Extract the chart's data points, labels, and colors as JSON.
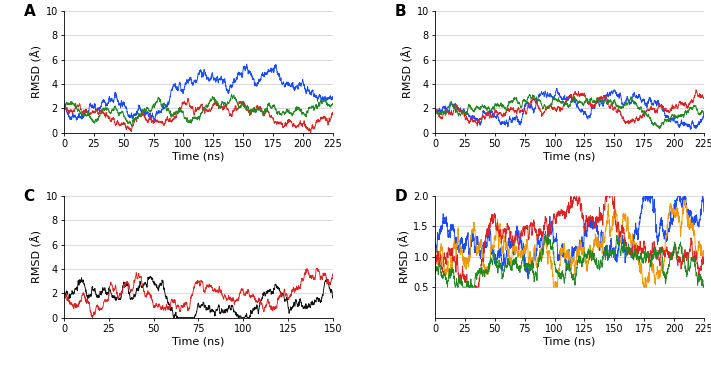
{
  "panel_A": {
    "label": "A",
    "xlim": [
      0,
      225
    ],
    "ylim": [
      0,
      10
    ],
    "xticks": [
      0,
      25,
      50,
      75,
      100,
      125,
      150,
      175,
      200,
      225
    ],
    "yticks": [
      0,
      2,
      4,
      6,
      8,
      10
    ],
    "xlabel": "Time (ns)",
    "ylabel": "RMSD (Å)"
  },
  "panel_B": {
    "label": "B",
    "xlim": [
      0,
      225
    ],
    "ylim": [
      0,
      10
    ],
    "xticks": [
      0,
      25,
      50,
      75,
      100,
      125,
      150,
      175,
      200,
      225
    ],
    "yticks": [
      0,
      2,
      4,
      6,
      8,
      10
    ],
    "xlabel": "Time (ns)",
    "ylabel": "RMSD (Å)"
  },
  "panel_C": {
    "label": "C",
    "xlim": [
      0,
      150
    ],
    "ylim": [
      0,
      10
    ],
    "xticks": [
      0,
      25,
      50,
      75,
      100,
      125,
      150
    ],
    "yticks": [
      0,
      2,
      4,
      6,
      8,
      10
    ],
    "xlabel": "Time (ns)",
    "ylabel": "RMSD (Å)"
  },
  "panel_D": {
    "label": "D",
    "xlim": [
      0,
      225
    ],
    "ylim": [
      0,
      2.0
    ],
    "xticks": [
      0,
      25,
      50,
      75,
      100,
      125,
      150,
      175,
      200,
      225
    ],
    "yticks": [
      0.5,
      1.0,
      1.5,
      2.0
    ],
    "xlabel": "Time (ns)",
    "ylabel": "RMSD (Å)"
  },
  "label_fontsize": 8,
  "tick_fontsize": 7,
  "line_width": 0.65,
  "background_color": "#ffffff",
  "grid_color": "#cccccc",
  "panel_label_fontsize": 11
}
